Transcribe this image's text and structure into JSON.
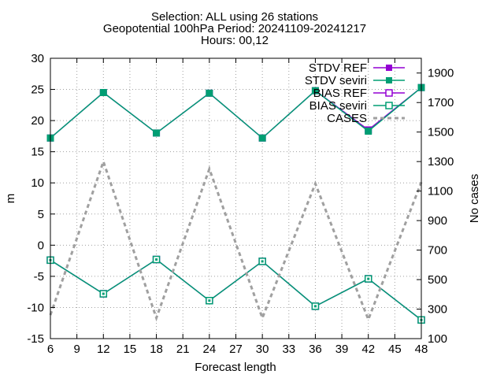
{
  "chart_data": {
    "type": "line",
    "title_lines": [
      "Selection: ALL using    26 stations",
      "Geopotential 100hPa   Period: 20241109-20241217",
      "Hours: 00,12"
    ],
    "xlabel": "Forecast length",
    "ylabel": "m",
    "y2label": "No cases",
    "x": [
      6,
      12,
      18,
      24,
      30,
      36,
      42,
      48
    ],
    "xlim": [
      6,
      48
    ],
    "xticks": [
      "6",
      "9",
      "12",
      "15",
      "18",
      "21",
      "24",
      "27",
      "30",
      "33",
      "36",
      "39",
      "42",
      "45",
      "48"
    ],
    "ylim": [
      -15,
      30
    ],
    "yticks": [
      "-15",
      "-10",
      "-5",
      "0",
      "5",
      "10",
      "15",
      "20",
      "25",
      "30"
    ],
    "y2lim": [
      100,
      2000
    ],
    "y2ticks": [
      "100",
      "300",
      "500",
      "700",
      "900",
      "1100",
      "1300",
      "1500",
      "1700",
      "1900"
    ],
    "grid": true,
    "legend_position": "top-right",
    "series": [
      {
        "name": "STDV REF",
        "axis": "y",
        "marker": "filled-square",
        "color": "#9400d3",
        "values": [
          17.2,
          24.5,
          18.0,
          24.4,
          17.2,
          24.8,
          18.5,
          25.3
        ]
      },
      {
        "name": "STDV seviri",
        "axis": "y",
        "marker": "filled-square",
        "color": "#009e73",
        "values": [
          17.2,
          24.5,
          18.0,
          24.4,
          17.2,
          24.8,
          18.3,
          25.3
        ]
      },
      {
        "name": "BIAS REF",
        "axis": "y",
        "marker": "open-square",
        "color": "#9400d3",
        "values": [
          -2.4,
          -7.8,
          -2.3,
          -8.9,
          -2.6,
          -9.8,
          -5.4,
          -12.0
        ]
      },
      {
        "name": "BIAS seviri",
        "axis": "y",
        "marker": "open-square",
        "color": "#009e73",
        "values": [
          -2.4,
          -7.8,
          -2.3,
          -8.9,
          -2.6,
          -9.8,
          -5.4,
          -12.0
        ]
      },
      {
        "name": "CASES",
        "axis": "y2",
        "marker": "none",
        "color": "#a0a0a0",
        "dashed": true,
        "values": [
          260,
          1300,
          240,
          1250,
          240,
          1150,
          230,
          1160
        ]
      }
    ]
  }
}
